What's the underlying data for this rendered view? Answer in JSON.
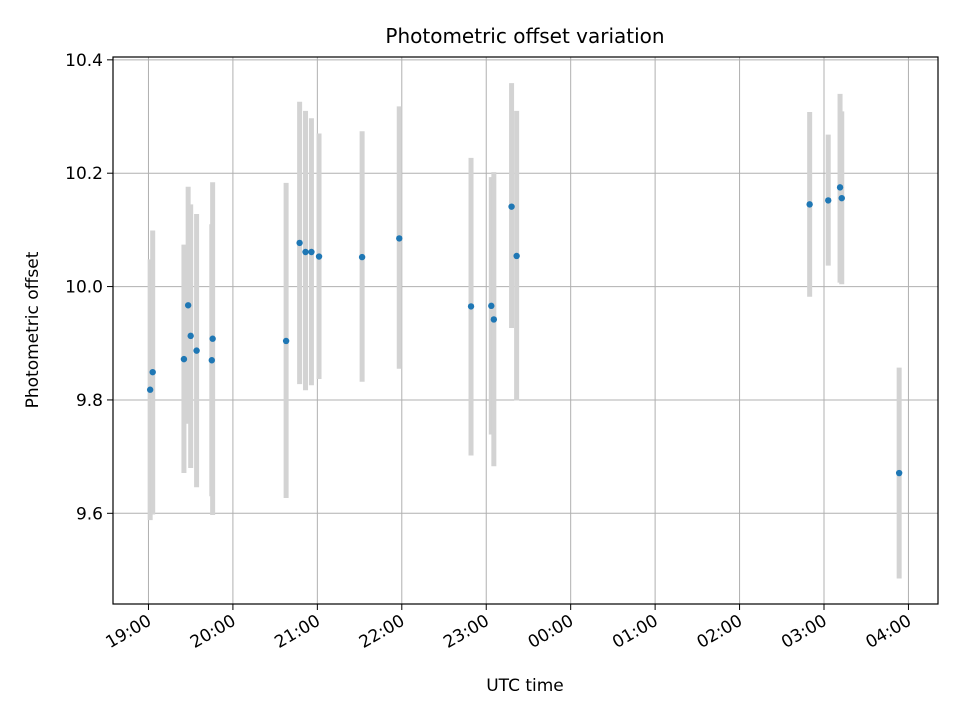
{
  "chart_data": {
    "type": "scatter",
    "title": "Photometric offset variation",
    "xlabel": "UTC time",
    "ylabel": "Photometric offset",
    "x_unit": "hours since 19:00 UTC",
    "xlim": [
      -0.42,
      9.35
    ],
    "ylim": [
      9.44,
      10.405
    ],
    "grid": true,
    "x_ticks": [
      {
        "hour": 0,
        "label": "19:00"
      },
      {
        "hour": 1,
        "label": "20:00"
      },
      {
        "hour": 2,
        "label": "21:00"
      },
      {
        "hour": 3,
        "label": "22:00"
      },
      {
        "hour": 4,
        "label": "23:00"
      },
      {
        "hour": 5,
        "label": "00:00"
      },
      {
        "hour": 6,
        "label": "01:00"
      },
      {
        "hour": 7,
        "label": "02:00"
      },
      {
        "hour": 8,
        "label": "03:00"
      },
      {
        "hour": 9,
        "label": "04:00"
      }
    ],
    "y_ticks": [
      {
        "value": 9.6,
        "label": "9.6"
      },
      {
        "value": 9.8,
        "label": "9.8"
      },
      {
        "value": 10.0,
        "label": "10.0"
      },
      {
        "value": 10.2,
        "label": "10.2"
      },
      {
        "value": 10.4,
        "label": "10.4"
      }
    ],
    "marker_color": "#1f77b4",
    "errorbar_color": "#d3d3d3",
    "points": [
      {
        "x": 0.02,
        "y": 9.818,
        "err_low": 9.588,
        "err_high": 10.048
      },
      {
        "x": 0.05,
        "y": 9.849,
        "err_low": 9.598,
        "err_high": 10.099
      },
      {
        "x": 0.42,
        "y": 9.872,
        "err_low": 9.671,
        "err_high": 10.074
      },
      {
        "x": 0.47,
        "y": 9.967,
        "err_low": 9.758,
        "err_high": 10.176
      },
      {
        "x": 0.5,
        "y": 9.913,
        "err_low": 9.68,
        "err_high": 10.145
      },
      {
        "x": 0.57,
        "y": 9.887,
        "err_low": 9.646,
        "err_high": 10.128
      },
      {
        "x": 0.75,
        "y": 9.87,
        "err_low": 9.63,
        "err_high": 10.11
      },
      {
        "x": 0.76,
        "y": 9.908,
        "err_low": 9.597,
        "err_high": 10.184
      },
      {
        "x": 1.63,
        "y": 9.904,
        "err_low": 9.627,
        "err_high": 10.183
      },
      {
        "x": 1.79,
        "y": 10.077,
        "err_low": 9.828,
        "err_high": 10.326
      },
      {
        "x": 1.86,
        "y": 10.061,
        "err_low": 9.817,
        "err_high": 10.31
      },
      {
        "x": 1.93,
        "y": 10.061,
        "err_low": 9.826,
        "err_high": 10.297
      },
      {
        "x": 2.02,
        "y": 10.053,
        "err_low": 9.837,
        "err_high": 10.27
      },
      {
        "x": 2.53,
        "y": 10.052,
        "err_low": 9.832,
        "err_high": 10.274
      },
      {
        "x": 2.97,
        "y": 10.085,
        "err_low": 9.855,
        "err_high": 10.318
      },
      {
        "x": 3.82,
        "y": 9.965,
        "err_low": 9.702,
        "err_high": 10.227
      },
      {
        "x": 4.06,
        "y": 9.966,
        "err_low": 9.739,
        "err_high": 10.193
      },
      {
        "x": 4.09,
        "y": 9.942,
        "err_low": 9.683,
        "err_high": 10.202
      },
      {
        "x": 4.3,
        "y": 10.141,
        "err_low": 9.927,
        "err_high": 10.359
      },
      {
        "x": 4.36,
        "y": 10.054,
        "err_low": 9.799,
        "err_high": 10.31
      },
      {
        "x": 7.83,
        "y": 10.145,
        "err_low": 9.982,
        "err_high": 10.308
      },
      {
        "x": 8.05,
        "y": 10.152,
        "err_low": 10.037,
        "err_high": 10.268
      },
      {
        "x": 8.19,
        "y": 10.175,
        "err_low": 10.007,
        "err_high": 10.34
      },
      {
        "x": 8.21,
        "y": 10.156,
        "err_low": 10.004,
        "err_high": 10.309
      },
      {
        "x": 8.89,
        "y": 9.671,
        "err_low": 9.485,
        "err_high": 9.857
      }
    ]
  }
}
